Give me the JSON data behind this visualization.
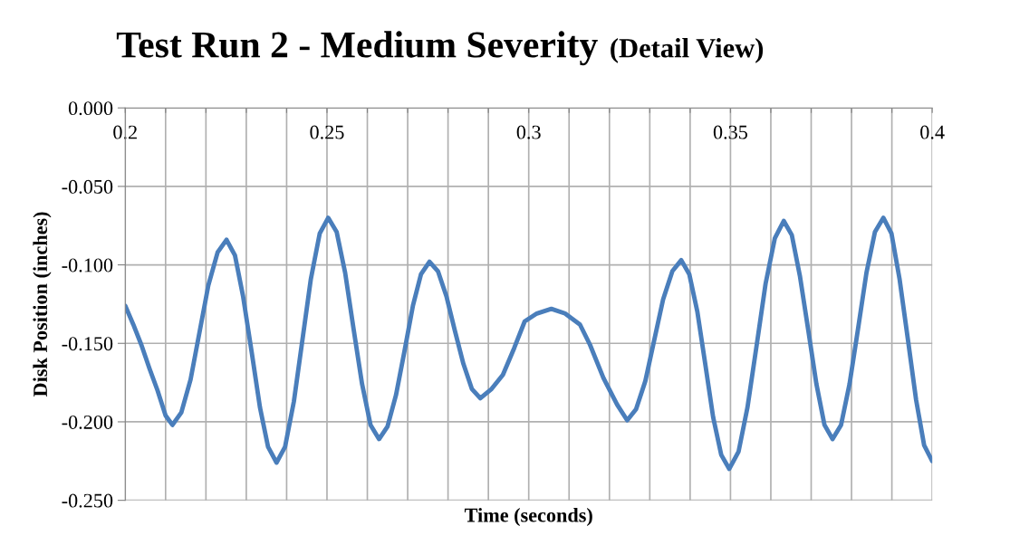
{
  "chart_data": {
    "type": "line",
    "title": "Test Run 2 - Medium Severity",
    "subtitle": "(Detail View)",
    "xlabel": "Time (seconds)",
    "ylabel": "Disk Position (inches)",
    "x": [
      0.2,
      0.202,
      0.204,
      0.206,
      0.208,
      0.21,
      0.2117,
      0.2139,
      0.2162,
      0.2184,
      0.2206,
      0.2229,
      0.2251,
      0.2272,
      0.2292,
      0.2313,
      0.2334,
      0.2354,
      0.2375,
      0.2396,
      0.2418,
      0.2439,
      0.246,
      0.2482,
      0.2503,
      0.2524,
      0.2545,
      0.2566,
      0.2587,
      0.2608,
      0.2629,
      0.265,
      0.2671,
      0.2692,
      0.2713,
      0.2733,
      0.2754,
      0.2775,
      0.2796,
      0.2817,
      0.2838,
      0.2859,
      0.288,
      0.2908,
      0.2936,
      0.2964,
      0.299,
      0.302,
      0.3056,
      0.309,
      0.3127,
      0.3152,
      0.3185,
      0.3219,
      0.3244,
      0.3266,
      0.3289,
      0.3311,
      0.3333,
      0.3356,
      0.3378,
      0.3398,
      0.3418,
      0.3438,
      0.3457,
      0.3477,
      0.3497,
      0.352,
      0.3542,
      0.3565,
      0.3587,
      0.361,
      0.3632,
      0.3652,
      0.3672,
      0.3693,
      0.3713,
      0.3733,
      0.3753,
      0.3774,
      0.3795,
      0.3816,
      0.3837,
      0.3858,
      0.3879,
      0.3899,
      0.3919,
      0.394,
      0.396,
      0.398,
      0.4
    ],
    "series": [
      {
        "color": "#4a7ebb",
        "values": [
          -0.126,
          -0.138,
          -0.151,
          -0.166,
          -0.18,
          -0.196,
          -0.202,
          -0.194,
          -0.173,
          -0.143,
          -0.113,
          -0.092,
          -0.084,
          -0.094,
          -0.12,
          -0.155,
          -0.191,
          -0.216,
          -0.226,
          -0.216,
          -0.187,
          -0.148,
          -0.109,
          -0.08,
          -0.07,
          -0.079,
          -0.105,
          -0.141,
          -0.176,
          -0.202,
          -0.211,
          -0.203,
          -0.183,
          -0.155,
          -0.126,
          -0.106,
          -0.098,
          -0.104,
          -0.12,
          -0.142,
          -0.163,
          -0.179,
          -0.185,
          -0.179,
          -0.17,
          -0.153,
          -0.136,
          -0.131,
          -0.128,
          -0.131,
          -0.138,
          -0.151,
          -0.172,
          -0.189,
          -0.199,
          -0.192,
          -0.174,
          -0.148,
          -0.122,
          -0.104,
          -0.097,
          -0.106,
          -0.13,
          -0.164,
          -0.197,
          -0.221,
          -0.23,
          -0.219,
          -0.191,
          -0.151,
          -0.112,
          -0.083,
          -0.072,
          -0.081,
          -0.107,
          -0.142,
          -0.176,
          -0.202,
          -0.211,
          -0.202,
          -0.176,
          -0.141,
          -0.105,
          -0.079,
          -0.07,
          -0.08,
          -0.109,
          -0.148,
          -0.186,
          -0.215,
          -0.225
        ]
      }
    ],
    "xlim": [
      0.2,
      0.4
    ],
    "ylim": [
      -0.25,
      0.0
    ],
    "xticks": [
      0.2,
      {
        "value": 0.21,
        "label": null
      },
      {
        "value": 0.22,
        "label": null
      },
      {
        "value": 0.23,
        "label": null
      },
      {
        "value": 0.24,
        "label": null
      },
      0.25,
      {
        "value": 0.26,
        "label": null
      },
      {
        "value": 0.27,
        "label": null
      },
      {
        "value": 0.28,
        "label": null
      },
      {
        "value": 0.29,
        "label": null
      },
      0.3,
      {
        "value": 0.31,
        "label": null
      },
      {
        "value": 0.32,
        "label": null
      },
      {
        "value": 0.33,
        "label": null
      },
      {
        "value": 0.34,
        "label": null
      },
      0.35,
      {
        "value": 0.36,
        "label": null
      },
      {
        "value": 0.37,
        "label": null
      },
      {
        "value": 0.38,
        "label": null
      },
      {
        "value": 0.39,
        "label": null
      },
      0.4
    ],
    "yticks": [
      {
        "value": 0.0,
        "label": "0.000"
      },
      {
        "value": -0.05,
        "label": "-0.050"
      },
      {
        "value": -0.1,
        "label": "-0.100"
      },
      {
        "value": -0.15,
        "label": "-0.150"
      },
      {
        "value": -0.2,
        "label": "-0.200"
      },
      {
        "value": -0.25,
        "label": "-0.250"
      }
    ],
    "grid": true,
    "line_style": "solid",
    "marker": "none"
  }
}
